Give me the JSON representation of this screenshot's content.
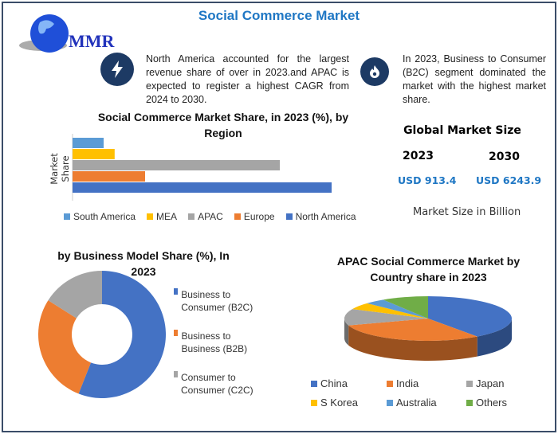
{
  "title": "Social Commerce Market",
  "logo_text": "MMR",
  "notes": [
    {
      "icon": "lightning-icon",
      "text": "North America accounted for the largest revenue share of over in 2023.and APAC is expected to register a highest CAGR from 2024 to 2030."
    },
    {
      "icon": "flame-icon",
      "text": "In 2023, Business to Consumer (B2C) segment dominated the market with the highest market share."
    }
  ],
  "market_size": {
    "title": "Global Market Size",
    "years": [
      "2023",
      "2030"
    ],
    "values": [
      "USD 913.4",
      "USD 6243.9"
    ],
    "unit_note": "Market Size in Billion"
  },
  "chart_data": [
    {
      "type": "bar",
      "orientation": "horizontal",
      "title": "Social Commerce Market Share, in 2023 (%), by Region",
      "ylabel": "Market Share",
      "categories": [
        "South America",
        "MEA",
        "APAC",
        "Europe",
        "North America"
      ],
      "values": [
        4.8,
        6.5,
        32,
        11.2,
        40
      ],
      "colors": [
        "#5b9bd5",
        "#ffc000",
        "#a5a5a5",
        "#ed7d31",
        "#4472c4"
      ],
      "legend": "bottom",
      "grid": false
    },
    {
      "type": "pie",
      "donut": true,
      "title": "by Business Model Share (%), In 2023",
      "categories": [
        "Business to Consumer (B2C)",
        "Business to Business (B2B)",
        "Consumer to Consumer (C2C)"
      ],
      "values": [
        56,
        28,
        16
      ],
      "colors": [
        "#4472c4",
        "#ed7d31",
        "#a5a5a5"
      ],
      "legend": "right"
    },
    {
      "type": "pie",
      "three_d": true,
      "title": "APAC Social Commerce Market by Country share in 2023",
      "categories": [
        "China",
        "India",
        "Japan",
        "S Korea",
        "Australia",
        "Others"
      ],
      "values": [
        40,
        30,
        12,
        5,
        4,
        9
      ],
      "colors": [
        "#4472c4",
        "#ed7d31",
        "#a5a5a5",
        "#ffc000",
        "#5b9bd5",
        "#70ad47"
      ],
      "legend": "bottom"
    }
  ]
}
